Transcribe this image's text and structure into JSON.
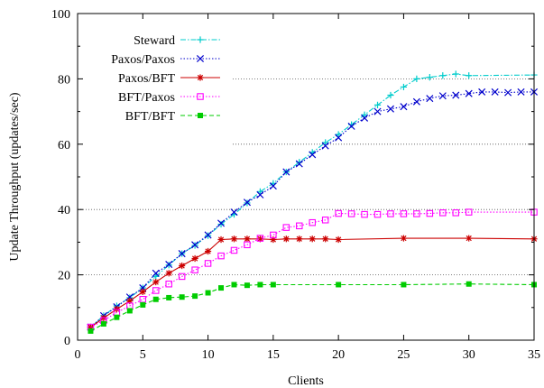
{
  "chart_data": {
    "type": "line",
    "xlabel": "Clients",
    "ylabel": "Update Throughput (updates/sec)",
    "xlim": [
      0,
      35
    ],
    "ylim": [
      0,
      100
    ],
    "xticks": [
      0,
      5,
      10,
      15,
      20,
      25,
      30,
      35
    ],
    "yticks": [
      0,
      20,
      40,
      60,
      80,
      100
    ],
    "grid": "horizontal dotted at 20, 40, 60, 80",
    "legend_position": "top-left",
    "series": [
      {
        "name": "Steward",
        "color": "#00cccc",
        "marker": "plus",
        "dash": "dash-dot",
        "x": [
          1,
          2,
          3,
          4,
          5,
          6,
          7,
          8,
          9,
          10,
          11,
          12,
          13,
          14,
          15,
          16,
          17,
          18,
          19,
          20,
          21,
          22,
          23,
          24,
          25,
          26,
          27,
          28,
          29,
          30,
          35
        ],
        "y": [
          4,
          7.5,
          10.5,
          13,
          16,
          19.5,
          23,
          26.5,
          29,
          32,
          35.5,
          38.5,
          42,
          45.5,
          48,
          51.5,
          54.5,
          57.5,
          60.5,
          63,
          66,
          69,
          72,
          75,
          77.5,
          80,
          80.5,
          81,
          81.5,
          81,
          81.2
        ]
      },
      {
        "name": "Paxos/Paxos",
        "color": "#0000cc",
        "marker": "cross",
        "dash": "dotted",
        "x": [
          1,
          2,
          3,
          4,
          5,
          6,
          7,
          8,
          9,
          10,
          11,
          12,
          13,
          14,
          15,
          16,
          17,
          18,
          19,
          20,
          21,
          22,
          23,
          24,
          25,
          26,
          27,
          28,
          29,
          30,
          31,
          32,
          33,
          34,
          35
        ],
        "y": [
          4,
          7.5,
          10.2,
          13.2,
          16,
          20.5,
          23.2,
          26.5,
          29.2,
          32.2,
          35.8,
          39.2,
          42.2,
          44.5,
          47.2,
          51.5,
          54,
          56.8,
          59.5,
          62,
          65.5,
          68,
          70,
          70.8,
          71.5,
          73,
          74,
          74.8,
          75,
          75.5,
          76,
          76,
          75.8,
          76,
          76
        ]
      },
      {
        "name": "Paxos/BFT",
        "color": "#cc0000",
        "marker": "star",
        "dash": "solid",
        "x": [
          1,
          2,
          3,
          4,
          5,
          6,
          7,
          8,
          9,
          10,
          11,
          12,
          13,
          14,
          15,
          16,
          17,
          18,
          19,
          20,
          25,
          30,
          35
        ],
        "y": [
          4,
          6.8,
          9.5,
          12,
          14.8,
          17.8,
          20.5,
          22.8,
          25,
          27.2,
          30.8,
          31,
          31,
          31,
          30.8,
          31,
          31,
          31,
          31,
          30.8,
          31.2,
          31.2,
          31
        ]
      },
      {
        "name": "BFT/Paxos",
        "color": "#ff00ff",
        "marker": "square-open",
        "dash": "dotted",
        "x": [
          1,
          2,
          3,
          4,
          5,
          6,
          7,
          8,
          9,
          10,
          11,
          12,
          13,
          14,
          15,
          16,
          17,
          18,
          19,
          20,
          21,
          22,
          23,
          24,
          25,
          26,
          27,
          28,
          29,
          30,
          35
        ],
        "y": [
          4,
          6,
          8.5,
          10.5,
          12.5,
          15.2,
          17.2,
          19.5,
          21.5,
          23.5,
          25.8,
          27.5,
          29.2,
          31.2,
          32.2,
          34.5,
          35,
          36,
          36.8,
          38.8,
          38.7,
          38.5,
          38.5,
          38.7,
          38.7,
          38.7,
          38.8,
          39,
          39,
          39.2,
          39.2
        ]
      },
      {
        "name": "BFT/BFT",
        "color": "#00cc00",
        "marker": "square-filled",
        "dash": "dashed",
        "x": [
          1,
          2,
          3,
          4,
          5,
          6,
          7,
          8,
          9,
          10,
          11,
          12,
          13,
          14,
          15,
          20,
          25,
          30,
          35
        ],
        "y": [
          2.8,
          5,
          7,
          9,
          10.8,
          12.5,
          13,
          13.2,
          13.5,
          14.5,
          16,
          17,
          16.8,
          17,
          17,
          17,
          17,
          17.2,
          17
        ]
      }
    ]
  }
}
